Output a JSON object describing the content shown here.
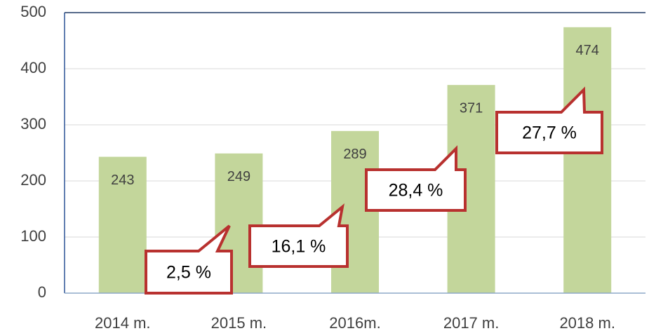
{
  "chart_data": {
    "type": "bar",
    "categories": [
      "2014 m.",
      "2015 m.",
      "2016m.",
      "2017 m.",
      "2018 m."
    ],
    "values": [
      243,
      249,
      289,
      371,
      474
    ],
    "color": "#c3d69b",
    "ylim": [
      0,
      500
    ],
    "yticks": [
      0,
      100,
      200,
      300,
      400,
      500
    ],
    "grid": true,
    "annotations": [
      {
        "text": "2,5 %"
      },
      {
        "text": "16,1 %"
      },
      {
        "text": "28,4 %"
      },
      {
        "text": "27,7 %"
      }
    ]
  }
}
